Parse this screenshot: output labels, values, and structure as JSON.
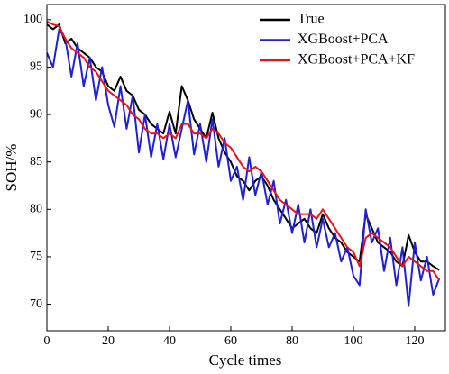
{
  "chart_data": {
    "type": "line",
    "xlabel": "Cycle times",
    "ylabel": "SOH/%",
    "x": [
      0,
      2,
      4,
      6,
      8,
      10,
      12,
      14,
      16,
      18,
      20,
      22,
      24,
      26,
      28,
      30,
      32,
      34,
      36,
      38,
      40,
      42,
      44,
      46,
      48,
      50,
      52,
      54,
      56,
      58,
      60,
      62,
      64,
      66,
      68,
      70,
      72,
      74,
      76,
      78,
      80,
      82,
      84,
      86,
      88,
      90,
      92,
      94,
      96,
      98,
      100,
      102,
      104,
      106,
      108,
      110,
      112,
      114,
      116,
      118,
      120,
      122,
      124,
      126,
      128
    ],
    "series": [
      {
        "name": "True",
        "color": "#000000",
        "values": [
          99.5,
          99,
          99.5,
          97.5,
          98,
          97,
          96.5,
          96,
          95,
          94.5,
          93,
          92.5,
          94,
          92.5,
          92,
          90.5,
          90,
          89,
          88.5,
          88,
          90.3,
          88,
          93,
          91.5,
          89.5,
          88.5,
          87.5,
          90.2,
          87.5,
          86,
          85,
          83.5,
          83,
          82,
          83,
          83.5,
          82.5,
          81,
          80,
          79,
          78,
          78.5,
          79,
          78,
          77.5,
          79.5,
          78,
          77,
          76.5,
          75.5,
          75,
          74.5,
          79.5,
          78,
          76.5,
          76,
          75.5,
          74.5,
          74,
          77.3,
          75.5,
          74.5,
          74.5,
          74,
          73.6
        ]
      },
      {
        "name": "XGBoost+PCA",
        "color": "#1f1fd6",
        "values": [
          96.5,
          95,
          99,
          98,
          94,
          97.5,
          93,
          96,
          91.5,
          95,
          91,
          88.7,
          93,
          88.5,
          92,
          86,
          90,
          85.5,
          89,
          85.3,
          89,
          85.5,
          88.5,
          91.5,
          85.8,
          89,
          85,
          89.5,
          84.5,
          87.5,
          83,
          84.5,
          81,
          85.5,
          81.5,
          84,
          80.5,
          83,
          78.5,
          81,
          77.5,
          80.5,
          76.5,
          80,
          76,
          79,
          76,
          77.5,
          74.5,
          76,
          73,
          72,
          80,
          76.5,
          78,
          73.5,
          77,
          72,
          76,
          69.8,
          76.5,
          72.5,
          75,
          71,
          72.7
        ]
      },
      {
        "name": "XGBoost+PCA+KF",
        "color": "#e8131b",
        "values": [
          99.8,
          99.5,
          99.3,
          98,
          97,
          96.5,
          96,
          95,
          94.5,
          93.5,
          92.5,
          92,
          91.5,
          91,
          90,
          89.5,
          88.5,
          88,
          88,
          87.5,
          88,
          87.5,
          89,
          89,
          88,
          88,
          87.5,
          88.5,
          88,
          87,
          86.5,
          85.5,
          84.5,
          84,
          84.5,
          84,
          83,
          82,
          81,
          80.5,
          80,
          79.5,
          79.5,
          79.5,
          79,
          80,
          79,
          78,
          77,
          76,
          75.5,
          74,
          77,
          77.5,
          77,
          76.5,
          76,
          75,
          74,
          75,
          74.5,
          74,
          73.5,
          73.5,
          72.5
        ]
      }
    ],
    "xlim": [
      0,
      130
    ],
    "ylim": [
      67.2,
      101.6
    ],
    "xticks": [
      0,
      20,
      40,
      60,
      80,
      100,
      120
    ],
    "yticks": [
      70,
      75,
      80,
      85,
      90,
      95,
      100
    ],
    "legend": "upper right",
    "grid": false
  }
}
